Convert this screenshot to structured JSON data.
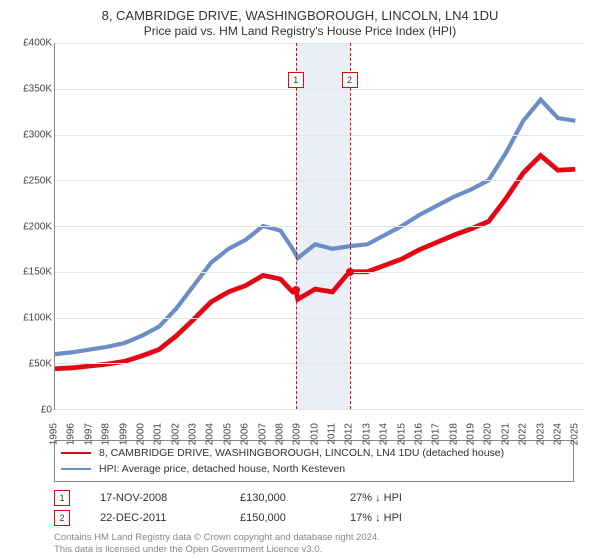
{
  "title": "8, CAMBRIDGE DRIVE, WASHINGBOROUGH, LINCOLN, LN4 1DU",
  "subtitle": "Price paid vs. HM Land Registry's House Price Index (HPI)",
  "chart": {
    "type": "line",
    "background_color": "#ffffff",
    "grid_color": "#e5e5e5",
    "axis_color": "#888888",
    "label_color": "#444444",
    "label_fontsize": 10,
    "xlim": [
      1995,
      2025.5
    ],
    "ylim": [
      0,
      400000
    ],
    "ytick_step": 50000,
    "ytick_prefix": "£",
    "ytick_suffix": "K",
    "yticks": [
      {
        "v": 0,
        "label": "£0"
      },
      {
        "v": 50000,
        "label": "£50K"
      },
      {
        "v": 100000,
        "label": "£100K"
      },
      {
        "v": 150000,
        "label": "£150K"
      },
      {
        "v": 200000,
        "label": "£200K"
      },
      {
        "v": 250000,
        "label": "£250K"
      },
      {
        "v": 300000,
        "label": "£300K"
      },
      {
        "v": 350000,
        "label": "£350K"
      },
      {
        "v": 400000,
        "label": "£400K"
      }
    ],
    "xticks": [
      1995,
      1996,
      1997,
      1998,
      1999,
      2000,
      2001,
      2002,
      2003,
      2004,
      2005,
      2006,
      2007,
      2008,
      2009,
      2010,
      2011,
      2012,
      2013,
      2014,
      2015,
      2016,
      2017,
      2018,
      2019,
      2020,
      2021,
      2022,
      2023,
      2024,
      2025
    ],
    "highlight_band": {
      "from": 2008.88,
      "to": 2011.98,
      "fill": "#e9eef7"
    },
    "sale_markers": [
      {
        "n": "1",
        "x": 2008.88,
        "y": 130000,
        "line_color": "#e30613",
        "box_border": "#e30613",
        "box_top_pct": 8
      },
      {
        "n": "2",
        "x": 2011.98,
        "y": 150000,
        "line_color": "#e30613",
        "box_border": "#e30613",
        "box_top_pct": 8
      }
    ],
    "sale_point_color": "#e30613",
    "series": [
      {
        "id": "hpi",
        "label": "HPI: Average price, detached house, North Kesteven",
        "color": "#6b8ec7",
        "width": 1.4,
        "points": [
          [
            1995,
            60000
          ],
          [
            1996,
            62000
          ],
          [
            1997,
            65000
          ],
          [
            1998,
            68000
          ],
          [
            1999,
            72000
          ],
          [
            2000,
            80000
          ],
          [
            2001,
            90000
          ],
          [
            2002,
            110000
          ],
          [
            2003,
            135000
          ],
          [
            2004,
            160000
          ],
          [
            2005,
            175000
          ],
          [
            2006,
            185000
          ],
          [
            2007,
            200000
          ],
          [
            2008,
            195000
          ],
          [
            2008.7,
            175000
          ],
          [
            2009,
            165000
          ],
          [
            2010,
            180000
          ],
          [
            2011,
            175000
          ],
          [
            2012,
            178000
          ],
          [
            2013,
            180000
          ],
          [
            2014,
            190000
          ],
          [
            2015,
            200000
          ],
          [
            2016,
            212000
          ],
          [
            2017,
            222000
          ],
          [
            2018,
            232000
          ],
          [
            2019,
            240000
          ],
          [
            2020,
            250000
          ],
          [
            2021,
            280000
          ],
          [
            2022,
            315000
          ],
          [
            2023,
            338000
          ],
          [
            2024,
            318000
          ],
          [
            2025,
            315000
          ]
        ]
      },
      {
        "id": "paid",
        "label": "8, CAMBRIDGE DRIVE, WASHINGBOROUGH, LINCOLN, LN4 1DU (detached house)",
        "color": "#e30613",
        "width": 1.6,
        "points": [
          [
            1995,
            44000
          ],
          [
            1996,
            45000
          ],
          [
            1997,
            47000
          ],
          [
            1998,
            49000
          ],
          [
            1999,
            52000
          ],
          [
            2000,
            58000
          ],
          [
            2001,
            65000
          ],
          [
            2002,
            80000
          ],
          [
            2003,
            98000
          ],
          [
            2004,
            117000
          ],
          [
            2005,
            128000
          ],
          [
            2006,
            135000
          ],
          [
            2007,
            146000
          ],
          [
            2008,
            142000
          ],
          [
            2008.7,
            128000
          ],
          [
            2008.88,
            130000
          ],
          [
            2009,
            120000
          ],
          [
            2010,
            131000
          ],
          [
            2011,
            128000
          ],
          [
            2011.98,
            150000
          ],
          [
            2012,
            150000
          ],
          [
            2013,
            150000
          ],
          [
            2014,
            157000
          ],
          [
            2015,
            164000
          ],
          [
            2016,
            174000
          ],
          [
            2017,
            182000
          ],
          [
            2018,
            190000
          ],
          [
            2019,
            197000
          ],
          [
            2020,
            205000
          ],
          [
            2021,
            230000
          ],
          [
            2022,
            258000
          ],
          [
            2023,
            277000
          ],
          [
            2024,
            261000
          ],
          [
            2025,
            262000
          ]
        ]
      }
    ]
  },
  "legend": {
    "rows": [
      {
        "color": "#e30613",
        "label_path": "chart.series.1.label"
      },
      {
        "color": "#6b8ec7",
        "label_path": "chart.series.0.label"
      }
    ]
  },
  "sales": [
    {
      "n": "1",
      "date": "17-NOV-2008",
      "price": "£130,000",
      "delta": "27% ↓ HPI",
      "border": "#e30613"
    },
    {
      "n": "2",
      "date": "22-DEC-2011",
      "price": "£150,000",
      "delta": "17% ↓ HPI",
      "border": "#e30613"
    }
  ],
  "footer": {
    "line1": "Contains HM Land Registry data © Crown copyright and database right 2024.",
    "line2": "This data is licensed under the Open Government Licence v3.0."
  }
}
